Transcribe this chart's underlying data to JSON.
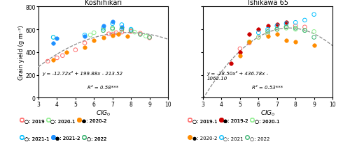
{
  "koshi_title": "Koshihikari",
  "ishi_title": "Ishikawa 65",
  "ylabel": "Grain yield (g m⁻²)",
  "xlim": [
    3,
    10
  ],
  "ylim": [
    0,
    800
  ],
  "xticks": [
    3,
    4,
    5,
    6,
    7,
    8,
    9,
    10
  ],
  "yticks": [
    0,
    200,
    400,
    600,
    800
  ],
  "koshi_eq": "y = -12.72x² + 199.88x - 213.52",
  "koshi_r2": "R² = 0.58***",
  "koshi_poly": [
    -12.72,
    199.88,
    -213.52
  ],
  "ishi_eq": "y = -28.50x² + 436.78x -\n1062.10",
  "ishi_r2": "R² = 0.53***",
  "ishi_poly": [
    -28.5,
    436.78,
    -1062.1
  ],
  "koshi_series": [
    {
      "name": "2019",
      "color": "#FF6B6B",
      "filled": false,
      "x": [
        3.5,
        4.0,
        4.3,
        5.0,
        5.5,
        6.8,
        7.0,
        7.2,
        7.5,
        8.0,
        8.5,
        9.0
      ],
      "y": [
        320,
        350,
        370,
        420,
        480,
        560,
        555,
        570,
        575,
        580,
        565,
        525
      ]
    },
    {
      "name": "2020-1",
      "color": "#90EE90",
      "filled": false,
      "x": [
        3.8,
        5.8,
        6.0,
        6.5,
        7.0,
        7.5,
        8.2,
        8.8
      ],
      "y": [
        530,
        550,
        570,
        590,
        600,
        600,
        575,
        540
      ]
    },
    {
      "name": "2020-2",
      "color": "#FF8C00",
      "filled": true,
      "x": [
        3.8,
        4.5,
        5.5,
        6.0,
        6.5,
        7.0,
        7.3,
        7.8
      ],
      "y": [
        330,
        400,
        440,
        500,
        530,
        545,
        560,
        540
      ]
    },
    {
      "name": "2021-1",
      "color": "#00BFFF",
      "filled": false,
      "x": [
        3.8,
        5.5,
        6.5,
        7.0,
        7.5,
        8.0
      ],
      "y": [
        530,
        550,
        610,
        650,
        640,
        600
      ]
    },
    {
      "name": "2021-2",
      "color": "#1E90FF",
      "filled": true,
      "x": [
        3.8,
        4.0,
        5.5,
        6.5,
        7.0,
        7.5
      ],
      "y": [
        480,
        520,
        540,
        630,
        670,
        620
      ]
    },
    {
      "name": "2022",
      "color": "#3CB371",
      "filled": false,
      "x": [
        6.5,
        7.0,
        7.5,
        8.0,
        8.5,
        9.0
      ],
      "y": [
        590,
        610,
        600,
        590,
        555,
        530
      ]
    }
  ],
  "ishi_series": [
    {
      "name": "2019-1",
      "color": "#FF6B6B",
      "filled": false,
      "x": [
        5.0,
        5.5,
        6.0,
        6.5,
        7.0,
        7.5,
        8.0,
        8.5
      ],
      "y": [
        430,
        480,
        530,
        560,
        600,
        620,
        630,
        620
      ]
    },
    {
      "name": "2019-2",
      "color": "#CC0000",
      "filled": true,
      "x": [
        4.5,
        5.0,
        5.5,
        6.0,
        6.5,
        7.0,
        7.5
      ],
      "y": [
        300,
        400,
        560,
        600,
        630,
        640,
        660
      ]
    },
    {
      "name": "2020-1",
      "color": "#90EE90",
      "filled": false,
      "x": [
        5.5,
        6.0,
        6.5,
        7.0,
        7.5,
        8.0,
        8.5,
        9.0
      ],
      "y": [
        490,
        530,
        560,
        600,
        610,
        600,
        590,
        580
      ]
    },
    {
      "name": "2020-2",
      "color": "#FF8C00",
      "filled": true,
      "x": [
        5.0,
        5.5,
        6.5,
        7.0,
        7.5,
        8.0,
        9.0
      ],
      "y": [
        370,
        490,
        540,
        560,
        500,
        490,
        460
      ]
    },
    {
      "name": "2021",
      "color": "#00BFFF",
      "filled": false,
      "x": [
        6.0,
        6.5,
        7.0,
        7.5,
        8.0,
        8.5,
        9.0
      ],
      "y": [
        570,
        600,
        630,
        650,
        660,
        680,
        730
      ]
    },
    {
      "name": "2022",
      "color": "#3CB371",
      "filled": false,
      "x": [
        6.5,
        7.0,
        7.5,
        8.0,
        8.5,
        9.0
      ],
      "y": [
        580,
        600,
        620,
        610,
        590,
        530
      ]
    }
  ],
  "legend_left": [
    {
      "label": "○: 2019",
      "color": "#FF6B6B",
      "filled": false
    },
    {
      "label": "○: 2020-1",
      "color": "#90EE90",
      "filled": false
    },
    {
      "label": "●: 2020-2",
      "color": "#FF8C00",
      "filled": true
    },
    {
      "label": "○: 2021-1",
      "color": "#00BFFF",
      "filled": false
    },
    {
      "label": "●: 2021-2",
      "color": "#1E90FF",
      "filled": true
    },
    {
      "label": "○: 2022",
      "color": "#3CB371",
      "filled": false
    }
  ],
  "legend_right": [
    {
      "label": "○: 2019-1",
      "color": "#FF6B6B",
      "filled": false
    },
    {
      "label": "●: 2019-2",
      "color": "#CC0000",
      "filled": true
    },
    {
      "label": "○: 2020-1",
      "color": "#90EE90",
      "filled": false
    },
    {
      "label": "●: 2020-2",
      "color": "#FF8C00",
      "filled": true
    },
    {
      "label": "○: 2021",
      "color": "#00BFFF",
      "filled": false
    },
    {
      "label": "○: 2022",
      "color": "#3CB371",
      "filled": false
    }
  ]
}
